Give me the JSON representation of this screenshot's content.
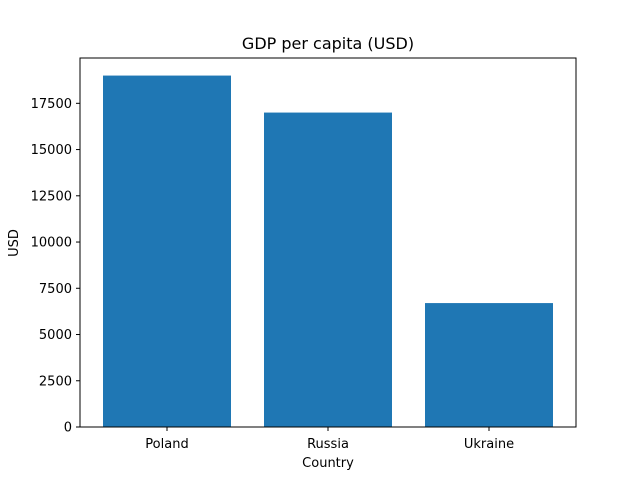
{
  "chart_data": {
    "type": "bar",
    "title": "GDP per capita (USD)",
    "xlabel": "Country",
    "ylabel": "USD",
    "categories": [
      "Poland",
      "Russia",
      "Ukraine"
    ],
    "values": [
      19000,
      17000,
      6700
    ],
    "ylim": [
      0,
      19950
    ],
    "yticks": [
      0,
      2500,
      5000,
      7500,
      10000,
      12500,
      15000,
      17500
    ],
    "ytick_labels": [
      "0",
      "2500",
      "5000",
      "7500",
      "10000",
      "12500",
      "15000",
      "17500"
    ],
    "grid": false,
    "legend": "none",
    "colors": {
      "bar": "#1f77b4",
      "axis": "#000000",
      "background": "#ffffff"
    }
  }
}
